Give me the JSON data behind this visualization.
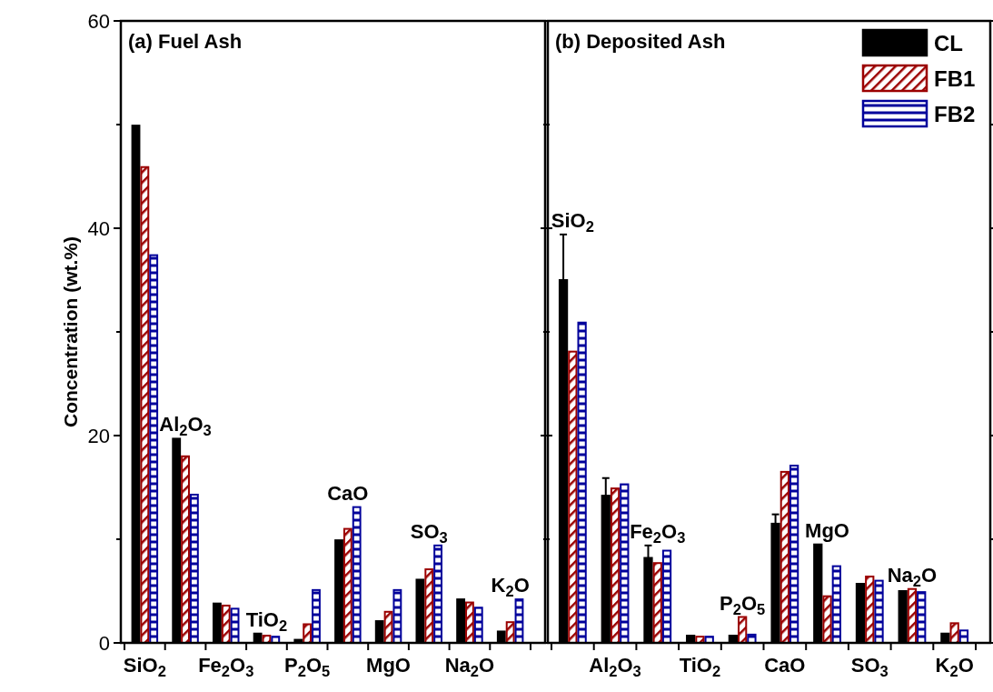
{
  "chart_data": [
    {
      "type": "bar",
      "title": "(a) Fuel Ash",
      "ylabel": "Concentration (wt.%)",
      "categories": [
        "SiO$_{2}$",
        null,
        "Fe$_{2}$O$_{3}$",
        null,
        "P$_{2}$O$_{5}$",
        null,
        "MgO",
        null,
        "Na$_{2}$O",
        null
      ],
      "annotations": [
        "Al$_{2}$O$_{3}$",
        "TiO$_{2}$",
        "CaO",
        "SO$_{3}$",
        "K$_{2}$O"
      ],
      "series": [
        {
          "color": "#000000",
          "values": [
            49.9,
            19.7,
            3.8,
            0.9,
            0.3,
            9.9,
            2.1,
            6.1,
            4.2,
            1.1
          ]
        },
        {
          "color": "#9b0000",
          "values": [
            45.9,
            18.0,
            3.6,
            0.7,
            1.8,
            11.0,
            3.0,
            7.1,
            3.9,
            2.0
          ]
        },
        {
          "color": "#00009b",
          "values": [
            37.4,
            14.3,
            3.3,
            0.6,
            5.1,
            13.1,
            5.1,
            9.4,
            3.4,
            4.2
          ]
        }
      ],
      "ylim": [
        0,
        60
      ],
      "yticks": [
        0,
        {
          "value": 10,
          "label": null
        },
        20,
        {
          "value": 30,
          "label": null
        },
        40,
        {
          "value": 50,
          "label": null
        },
        60
      ],
      "legend": false
    },
    {
      "type": "bar",
      "title": "(b) Deposited Ash",
      "categories": [
        null,
        "Al$_{2}$O$_{3}$",
        null,
        "TiO$_{2}$",
        null,
        "CaO",
        null,
        "SO$_{3}$",
        null,
        "K$_{2}$O"
      ],
      "annotations": [
        "SiO$_{2}$",
        "Fe$_{2}$O$_{3}$",
        "P$_{2}$O$_{5}$",
        "MgO",
        "Na$_{2}$O"
      ],
      "series": [
        {
          "name": "CL",
          "color": "#000000",
          "values": [
            35.0,
            14.2,
            8.2,
            0.7,
            0.7,
            11.5,
            9.5,
            5.7,
            5.0,
            0.9
          ],
          "errors": [
            4.4,
            1.7,
            1.2,
            null,
            null,
            0.9,
            null,
            null,
            null,
            null
          ]
        },
        {
          "name": "FB1",
          "color": "#9b0000",
          "values": [
            28.1,
            14.9,
            7.7,
            0.6,
            2.5,
            16.5,
            4.5,
            6.4,
            5.2,
            1.9
          ]
        },
        {
          "name": "FB2",
          "color": "#00009b",
          "values": [
            30.9,
            15.3,
            8.9,
            0.6,
            0.8,
            17.1,
            7.4,
            6.0,
            4.9,
            1.2
          ]
        }
      ],
      "ylim": [
        0,
        60
      ],
      "yticks": [
        0,
        {
          "value": 10,
          "label": null
        },
        20,
        {
          "value": 30,
          "label": null
        },
        40,
        {
          "value": 50,
          "label": null
        },
        60
      ],
      "tick_labels": "x",
      "legend": "top right"
    }
  ]
}
